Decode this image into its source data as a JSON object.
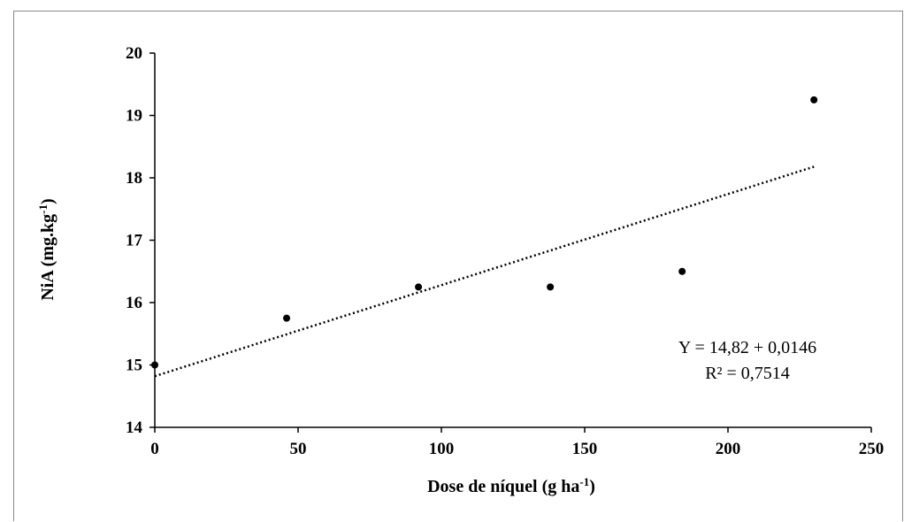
{
  "chart_data": {
    "type": "scatter",
    "xlabel": "Dose de níquel (g ha",
    "xlabel_sup": "-1",
    "xlabel_suffix": ")",
    "ylabel": "NiA (mg.kg",
    "ylabel_sup": "-1",
    "ylabel_suffix": ")",
    "xlim": [
      0,
      250
    ],
    "ylim": [
      14,
      20
    ],
    "xticks": [
      0,
      50,
      100,
      150,
      200,
      250
    ],
    "yticks": [
      14,
      15,
      16,
      17,
      18,
      19,
      20
    ],
    "series": [
      {
        "points": [
          {
            "x": 0,
            "y": 15.0
          },
          {
            "x": 46,
            "y": 15.75
          },
          {
            "x": 92,
            "y": 16.25
          },
          {
            "x": 138,
            "y": 16.25
          },
          {
            "x": 184,
            "y": 16.5
          },
          {
            "x": 230,
            "y": 19.25
          }
        ]
      }
    ],
    "trendline": {
      "type": "linear",
      "intercept": 14.82,
      "slope": 0.0146,
      "x_range": [
        0,
        230
      ],
      "style": "dotted"
    },
    "annotations": {
      "equation": "Y = 14,82 + 0,0146",
      "r2": "R² = 0,7514"
    },
    "grid": false,
    "legend": "none"
  }
}
